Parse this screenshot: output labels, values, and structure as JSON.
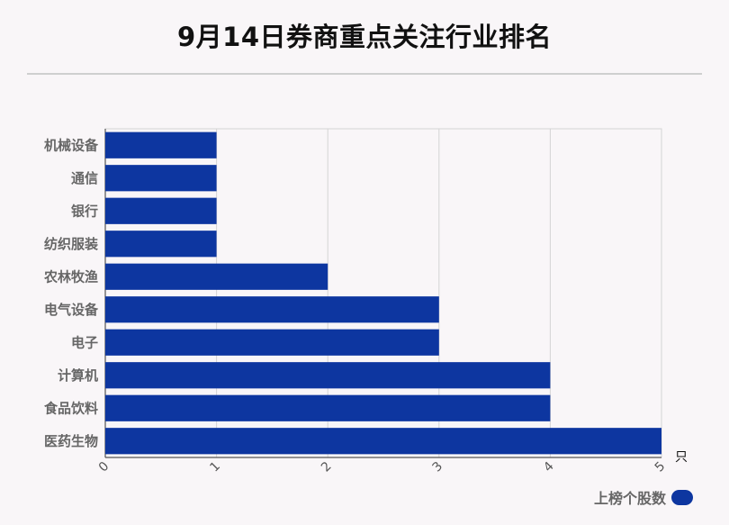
{
  "title": "9月14日券商重点关注行业排名",
  "legend": {
    "label": "上榜个股数",
    "color": "#0d36a0"
  },
  "chart_data": {
    "type": "bar",
    "orientation": "horizontal",
    "title": "9月14日券商重点关注行业排名",
    "categories": [
      "机械设备",
      "通信",
      "银行",
      "纺织服装",
      "农林牧渔",
      "电气设备",
      "电子",
      "计算机",
      "食品饮料",
      "医药生物"
    ],
    "series": [
      {
        "name": "上榜个股数",
        "values": [
          1,
          1,
          1,
          1,
          2,
          3,
          3,
          4,
          4,
          5
        ],
        "color": "#0d36a0"
      }
    ],
    "x_ticks": [
      "0",
      "1",
      "2",
      "3",
      "4",
      "5"
    ],
    "xlim": [
      0,
      5
    ],
    "x_unit": "只",
    "grid": true,
    "legend_position": "bottom-right"
  }
}
